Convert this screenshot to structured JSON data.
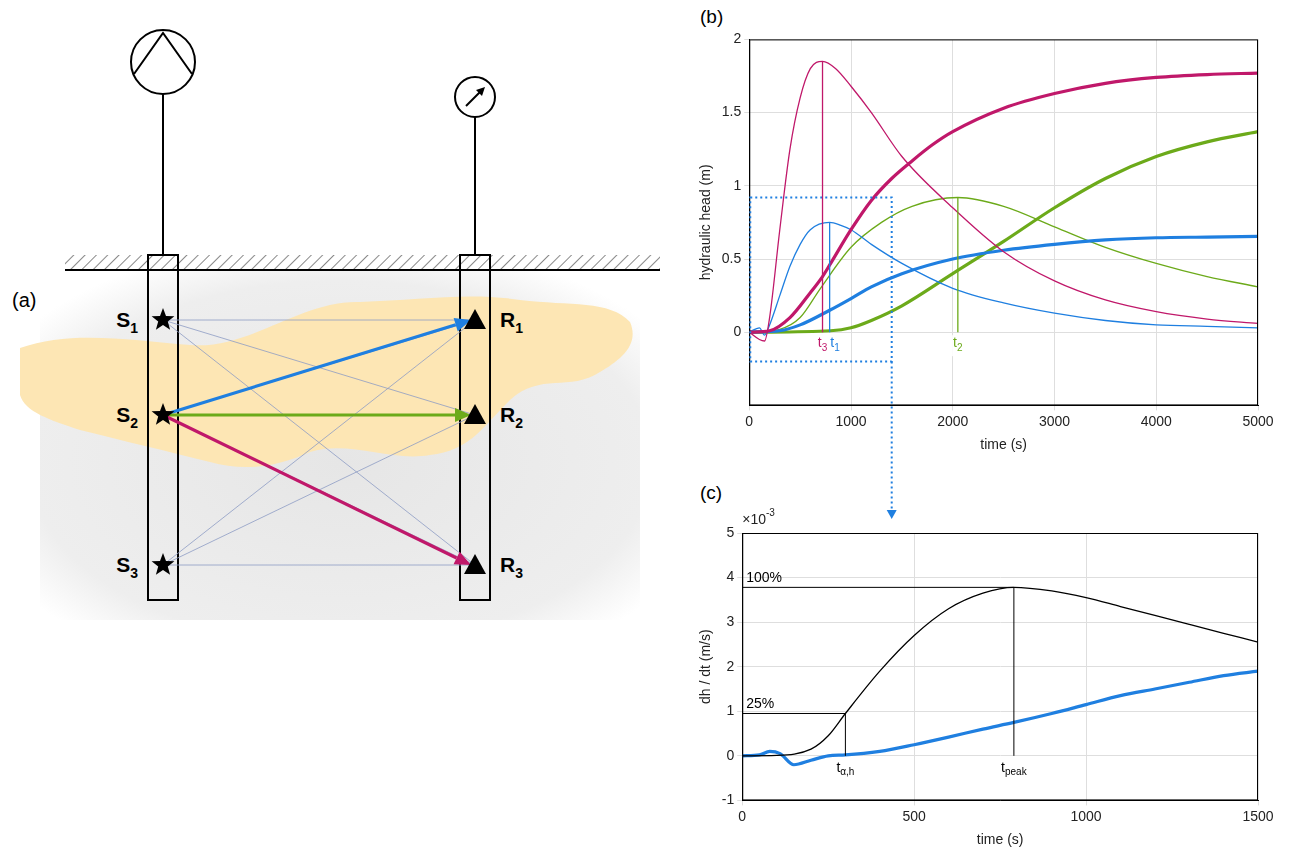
{
  "diagram": {
    "label": "(a)",
    "sources": [
      {
        "text": "S",
        "sub": "1"
      },
      {
        "text": "S",
        "sub": "2"
      },
      {
        "text": "S",
        "sub": "3"
      }
    ],
    "receivers": [
      {
        "text": "R",
        "sub": "1"
      },
      {
        "text": "R",
        "sub": "2"
      },
      {
        "text": "R",
        "sub": "3"
      }
    ],
    "paths": [
      {
        "from": 2,
        "to": 1,
        "color": "#1f7fe0"
      },
      {
        "from": 2,
        "to": 2,
        "color": "#6caa1a"
      },
      {
        "from": 2,
        "to": 3,
        "color": "#c0186a"
      }
    ]
  },
  "chart_data": [
    {
      "type": "line",
      "panel": "(b)",
      "xlabel": "time (s)",
      "ylabel": "hydraulic head (m)",
      "xlim": [
        0,
        5000
      ],
      "xticks": [
        0,
        1000,
        2000,
        3000,
        4000,
        5000
      ],
      "ylim": [
        -0.5,
        2
      ],
      "yticks": [
        0,
        0.5,
        1,
        1.5,
        2
      ],
      "grid": true,
      "series": [
        {
          "color": "#c0186a",
          "line_style": "thick",
          "x": [
            0,
            200,
            400,
            600,
            720,
            800,
            1000,
            1200,
            1400,
            1600,
            1800,
            2000,
            2500,
            3000,
            3500,
            4000,
            4500,
            5000
          ],
          "values": [
            0,
            0.01,
            0.1,
            0.27,
            0.38,
            0.47,
            0.7,
            0.9,
            1.05,
            1.17,
            1.28,
            1.37,
            1.53,
            1.63,
            1.7,
            1.74,
            1.76,
            1.77
          ]
        },
        {
          "color": "#c0186a",
          "line_style": "thin",
          "x": [
            0,
            100,
            150,
            200,
            300,
            400,
            500,
            600,
            720,
            850,
            1000,
            1200,
            1500,
            2000,
            2500,
            3000,
            3500,
            4000,
            4500,
            5000
          ],
          "values": [
            0,
            -0.05,
            -0.06,
            0.1,
            0.7,
            1.25,
            1.6,
            1.8,
            1.85,
            1.8,
            1.68,
            1.5,
            1.2,
            0.85,
            0.55,
            0.35,
            0.22,
            0.14,
            0.09,
            0.06
          ]
        },
        {
          "color": "#1f7fe0",
          "line_style": "thick",
          "x": [
            0,
            300,
            500,
            790,
            1000,
            1200,
            1500,
            2000,
            2500,
            3000,
            3500,
            4000,
            4500,
            5000
          ],
          "values": [
            0,
            0.01,
            0.05,
            0.15,
            0.23,
            0.31,
            0.4,
            0.5,
            0.56,
            0.6,
            0.63,
            0.645,
            0.65,
            0.655
          ]
        },
        {
          "color": "#1f7fe0",
          "line_style": "thin",
          "x": [
            0,
            100,
            150,
            200,
            300,
            400,
            500,
            600,
            790,
            900,
            1000,
            1200,
            1500,
            2000,
            2500,
            3000,
            3500,
            4000,
            4500,
            5000
          ],
          "values": [
            0,
            0.03,
            -0.02,
            0.05,
            0.25,
            0.45,
            0.6,
            0.7,
            0.75,
            0.73,
            0.7,
            0.6,
            0.47,
            0.3,
            0.2,
            0.13,
            0.08,
            0.05,
            0.04,
            0.03
          ]
        },
        {
          "color": "#6caa1a",
          "line_style": "thick",
          "x": [
            0,
            800,
            1000,
            1200,
            1500,
            2000,
            2500,
            3000,
            3500,
            4000,
            4500,
            5000
          ],
          "values": [
            0,
            0.01,
            0.03,
            0.08,
            0.18,
            0.4,
            0.62,
            0.85,
            1.05,
            1.2,
            1.3,
            1.37
          ]
        },
        {
          "color": "#6caa1a",
          "line_style": "thin",
          "x": [
            0,
            300,
            500,
            700,
            1000,
            1300,
            1600,
            2050,
            2500,
            3000,
            3500,
            4000,
            4500,
            5000
          ],
          "values": [
            0,
            0.02,
            0.1,
            0.3,
            0.58,
            0.75,
            0.86,
            0.92,
            0.86,
            0.72,
            0.58,
            0.47,
            0.38,
            0.31
          ]
        }
      ],
      "markers": [
        {
          "x": 720,
          "y": 1.85,
          "color": "#c0186a",
          "text": "t",
          "sub": "3"
        },
        {
          "x": 790,
          "y": 0.75,
          "color": "#1f7fe0",
          "text": "t",
          "sub": "1"
        },
        {
          "x": 2050,
          "y": 0.92,
          "color": "#6caa1a",
          "text": "t",
          "sub": "2"
        }
      ],
      "zoom_box": {
        "xlim": [
          0,
          1400
        ],
        "ylim": [
          -0.2,
          0.92
        ],
        "color": "#1f7fe0"
      }
    },
    {
      "type": "line",
      "panel": "(c)",
      "xlabel": "time (s)",
      "ylabel": "dh / dt (m/s)",
      "y_scale_label": {
        "text": "×10",
        "sup": "-3"
      },
      "xlim": [
        0,
        1500
      ],
      "xticks": [
        0,
        500,
        1000,
        1500
      ],
      "ylim": [
        -1,
        5
      ],
      "yticks": [
        -1,
        0,
        1,
        2,
        3,
        4,
        5
      ],
      "grid": true,
      "series": [
        {
          "color": "#000000",
          "line_style": "thin",
          "x": [
            0,
            100,
            200,
            250,
            300,
            400,
            500,
            600,
            700,
            790,
            900,
            1000,
            1100,
            1200,
            1300,
            1400,
            1500
          ],
          "values": [
            0,
            0.01,
            0.15,
            0.45,
            0.95,
            1.9,
            2.7,
            3.3,
            3.65,
            3.78,
            3.7,
            3.55,
            3.35,
            3.15,
            2.95,
            2.75,
            2.55
          ]
        },
        {
          "color": "#1f7fe0",
          "line_style": "thick",
          "x": [
            0,
            50,
            80,
            110,
            150,
            200,
            250,
            300,
            400,
            500,
            600,
            700,
            790,
            900,
            1000,
            1100,
            1200,
            1300,
            1400,
            1500
          ],
          "values": [
            0,
            0.02,
            0.1,
            0.05,
            -0.2,
            -0.1,
            0,
            0.02,
            0.1,
            0.25,
            0.42,
            0.6,
            0.75,
            0.95,
            1.15,
            1.35,
            1.5,
            1.65,
            1.8,
            1.9
          ]
        }
      ],
      "levels": [
        {
          "x": 790,
          "y": 3.78,
          "label": "100%",
          "text": "t",
          "sub": "peak"
        },
        {
          "x": 300,
          "y": 0.95,
          "label": "25%",
          "text": "t",
          "sub": "α,h"
        }
      ]
    }
  ]
}
